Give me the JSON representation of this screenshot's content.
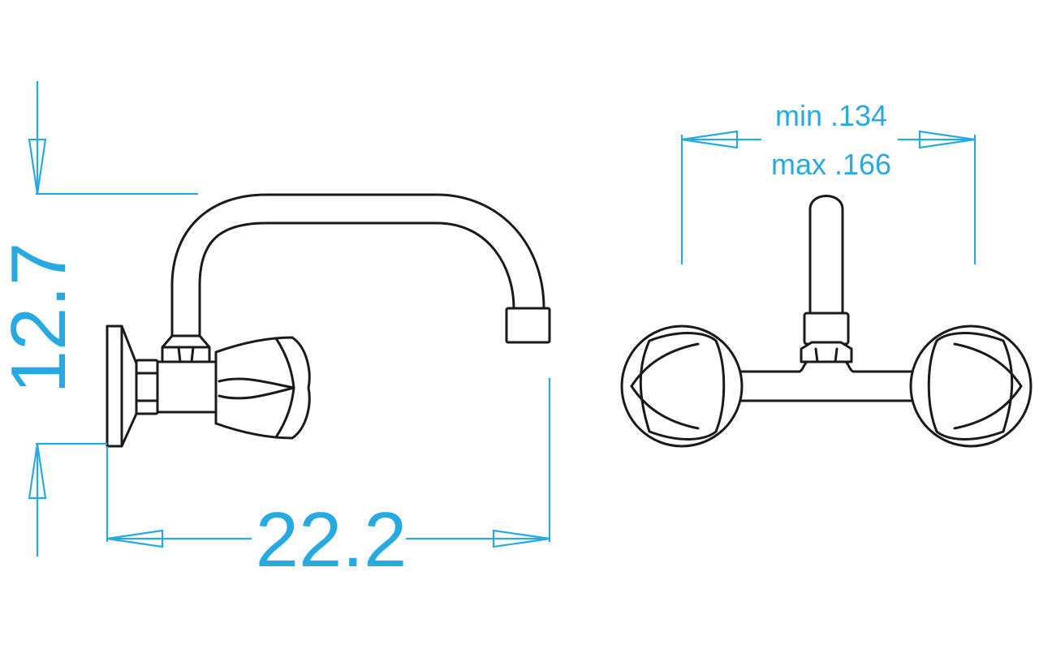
{
  "colors": {
    "dimension": "#29a9e1",
    "outline": "#1a1a1a",
    "background": "#ffffff"
  },
  "dimensions": {
    "height": "12.7",
    "length": "22.2",
    "spacing_min": "min .134",
    "spacing_max": "max .166"
  }
}
